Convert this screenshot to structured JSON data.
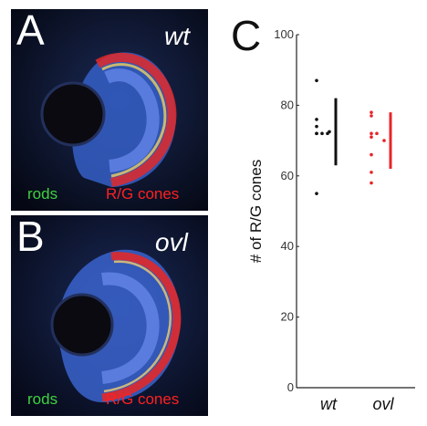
{
  "panel_a": {
    "letter": "A",
    "genotype": "wt",
    "rods_label": "rods",
    "cones_label": "R/G cones"
  },
  "panel_b": {
    "letter": "B",
    "genotype": "ovl",
    "rods_label": "rods",
    "cones_label": "R/G cones"
  },
  "panel_c": {
    "letter": "C"
  },
  "colors": {
    "wt": "#111111",
    "ovl": "#e8242a",
    "rods": "#3fd23f",
    "cones": "#ff2020",
    "dapi": "#4a6fd8"
  },
  "chart_data": {
    "type": "scatter",
    "title": "",
    "ylabel": "# of R/G cones",
    "xlabel": "",
    "ylim": [
      0,
      100
    ],
    "yticks": [
      0,
      20,
      40,
      60,
      80,
      100
    ],
    "categories": [
      "wt",
      "ovl"
    ],
    "series": [
      {
        "category": "wt",
        "points": [
          87,
          76,
          74,
          72,
          72,
          72,
          72,
          55
        ],
        "mean": 72.5,
        "range": [
          63,
          82
        ]
      },
      {
        "category": "ovl",
        "points": [
          78,
          77,
          72,
          72,
          71,
          66,
          61,
          58
        ],
        "mean": 70,
        "range": [
          62,
          78
        ]
      }
    ]
  }
}
